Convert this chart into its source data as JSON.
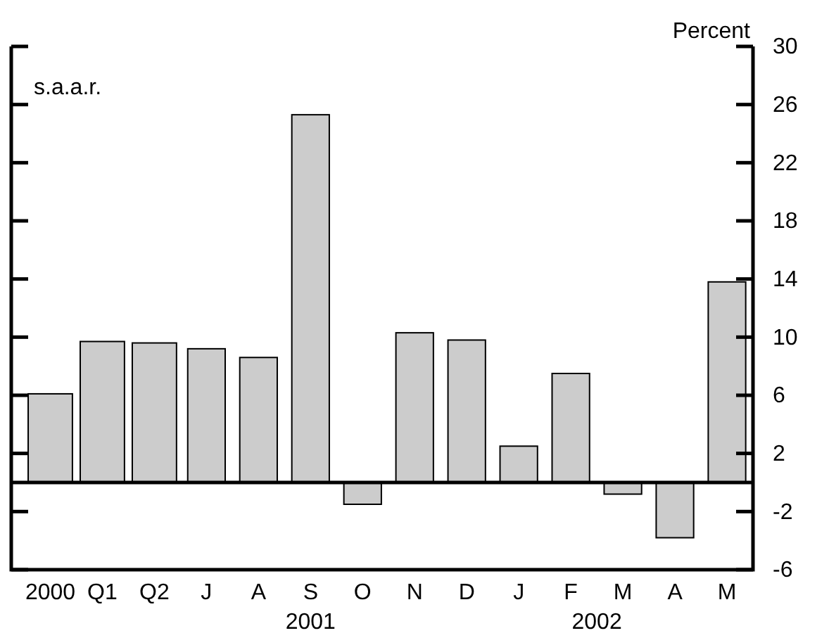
{
  "chart_data": {
    "type": "bar",
    "categories": [
      "2000",
      "Q1",
      "Q2",
      "J",
      "A",
      "S",
      "O",
      "N",
      "D",
      "J",
      "F",
      "M",
      "A",
      "M"
    ],
    "values": [
      6.1,
      9.7,
      9.6,
      9.2,
      8.6,
      25.3,
      -1.5,
      10.3,
      9.8,
      2.5,
      7.5,
      -0.8,
      -3.8,
      13.8
    ],
    "color": "#cccccc",
    "ylabel": "Percent",
    "ylim": [
      -6,
      30
    ],
    "yticks": [
      -6,
      -2,
      2,
      6,
      10,
      14,
      18,
      22,
      26,
      30
    ],
    "annotations": [
      "s.a.a.r.",
      "2001",
      "2002"
    ],
    "grid": false
  }
}
